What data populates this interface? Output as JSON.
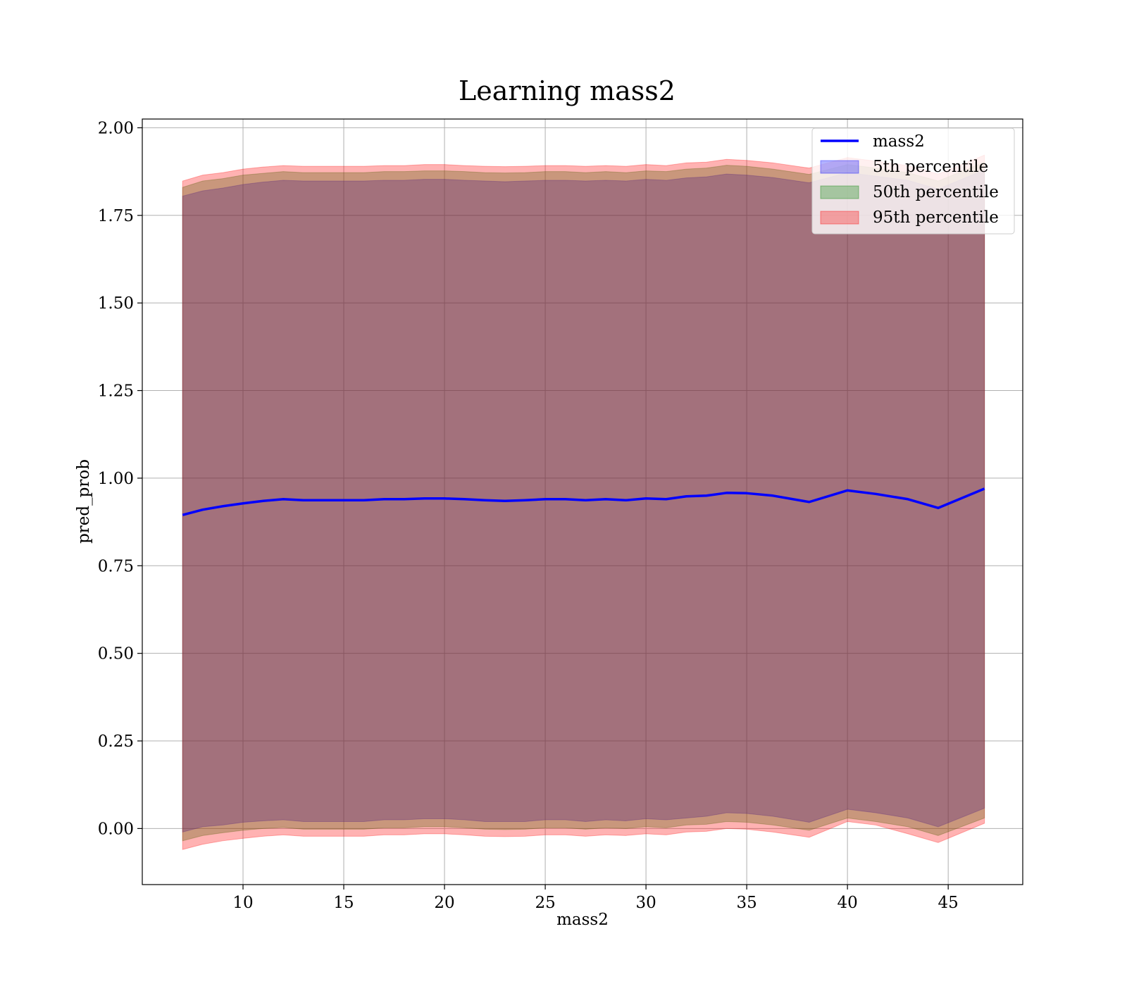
{
  "chart_data": {
    "type": "line",
    "title": "Learning mass2",
    "xlabel": "mass2",
    "ylabel": "pred_prob",
    "xlim": [
      5.0,
      48.7
    ],
    "ylim": [
      -0.16,
      2.025
    ],
    "xticks": [
      10,
      15,
      20,
      25,
      30,
      35,
      40,
      45
    ],
    "yticks": [
      0.0,
      0.25,
      0.5,
      0.75,
      1.0,
      1.25,
      1.5,
      1.75,
      2.0
    ],
    "ytick_labels": [
      "0.00",
      "0.25",
      "0.50",
      "0.75",
      "1.00",
      "1.25",
      "1.50",
      "1.75",
      "2.00"
    ],
    "grid": true,
    "legend_position": "top-right",
    "legend": [
      "mass2",
      "5th percentile",
      "50th percentile",
      "95th percentile"
    ],
    "x": [
      7.0,
      8.0,
      9.0,
      10.0,
      11.0,
      12.0,
      13.0,
      14.0,
      15.0,
      16.0,
      17.0,
      18.0,
      19.0,
      20.0,
      21.0,
      22.0,
      23.0,
      24.0,
      25.0,
      26.0,
      27.0,
      28.0,
      29.0,
      30.0,
      31.0,
      32.0,
      33.0,
      34.0,
      35.0,
      36.3,
      38.1,
      40.0,
      41.4,
      43.0,
      44.5,
      46.8
    ],
    "series": [
      {
        "name": "mass2",
        "role": "line",
        "color": "#0000ff",
        "values": [
          0.895,
          0.91,
          0.92,
          0.928,
          0.935,
          0.94,
          0.937,
          0.937,
          0.937,
          0.937,
          0.94,
          0.94,
          0.942,
          0.942,
          0.94,
          0.937,
          0.935,
          0.937,
          0.94,
          0.94,
          0.937,
          0.94,
          0.937,
          0.942,
          0.94,
          0.948,
          0.95,
          0.958,
          0.957,
          0.95,
          0.932,
          0.965,
          0.955,
          0.94,
          0.915,
          0.97
        ]
      },
      {
        "name": "5th percentile",
        "role": "band",
        "color": "#0000ff",
        "opacity": 0.3,
        "lower": [
          -0.01,
          0.005,
          0.01,
          0.018,
          0.022,
          0.025,
          0.02,
          0.02,
          0.02,
          0.02,
          0.025,
          0.025,
          0.028,
          0.028,
          0.025,
          0.02,
          0.02,
          0.02,
          0.025,
          0.025,
          0.02,
          0.025,
          0.022,
          0.028,
          0.025,
          0.03,
          0.035,
          0.045,
          0.043,
          0.035,
          0.018,
          0.055,
          0.045,
          0.03,
          0.005,
          0.058
        ],
        "upper": [
          1.805,
          1.82,
          1.828,
          1.838,
          1.845,
          1.85,
          1.848,
          1.848,
          1.848,
          1.848,
          1.85,
          1.85,
          1.853,
          1.853,
          1.85,
          1.848,
          1.846,
          1.848,
          1.85,
          1.85,
          1.848,
          1.85,
          1.848,
          1.853,
          1.85,
          1.857,
          1.86,
          1.868,
          1.865,
          1.858,
          1.843,
          1.872,
          1.862,
          1.85,
          1.825,
          1.88
        ]
      },
      {
        "name": "50th percentile",
        "role": "band",
        "color": "#008000",
        "opacity": 0.3,
        "lower": [
          -0.035,
          -0.02,
          -0.012,
          -0.005,
          0.0,
          0.003,
          -0.002,
          -0.002,
          -0.002,
          -0.002,
          0.002,
          0.002,
          0.005,
          0.005,
          0.002,
          -0.002,
          -0.003,
          -0.002,
          0.002,
          0.002,
          -0.002,
          0.002,
          0.0,
          0.005,
          0.002,
          0.01,
          0.012,
          0.02,
          0.018,
          0.01,
          -0.005,
          0.03,
          0.02,
          0.005,
          -0.02,
          0.03
        ],
        "upper": [
          1.83,
          1.848,
          1.855,
          1.865,
          1.87,
          1.875,
          1.872,
          1.872,
          1.872,
          1.872,
          1.875,
          1.875,
          1.877,
          1.877,
          1.875,
          1.872,
          1.871,
          1.872,
          1.875,
          1.875,
          1.872,
          1.875,
          1.872,
          1.877,
          1.875,
          1.882,
          1.885,
          1.893,
          1.89,
          1.882,
          1.867,
          1.895,
          1.885,
          1.872,
          1.848,
          1.902
        ]
      },
      {
        "name": "95th percentile",
        "role": "band",
        "color": "#ff0000",
        "opacity": 0.3,
        "lower": [
          -0.06,
          -0.045,
          -0.035,
          -0.028,
          -0.022,
          -0.018,
          -0.022,
          -0.022,
          -0.022,
          -0.022,
          -0.018,
          -0.018,
          -0.015,
          -0.015,
          -0.018,
          -0.022,
          -0.023,
          -0.022,
          -0.018,
          -0.018,
          -0.022,
          -0.018,
          -0.02,
          -0.015,
          -0.018,
          -0.01,
          -0.008,
          0.0,
          -0.002,
          -0.01,
          -0.025,
          0.02,
          0.01,
          -0.015,
          -0.04,
          0.015
        ],
        "upper": [
          1.848,
          1.865,
          1.872,
          1.882,
          1.888,
          1.892,
          1.89,
          1.89,
          1.89,
          1.89,
          1.892,
          1.892,
          1.895,
          1.895,
          1.892,
          1.89,
          1.889,
          1.89,
          1.892,
          1.892,
          1.89,
          1.892,
          1.89,
          1.895,
          1.892,
          1.9,
          1.902,
          1.91,
          1.907,
          1.9,
          1.885,
          1.915,
          1.905,
          1.892,
          1.868,
          1.922
        ]
      }
    ]
  }
}
